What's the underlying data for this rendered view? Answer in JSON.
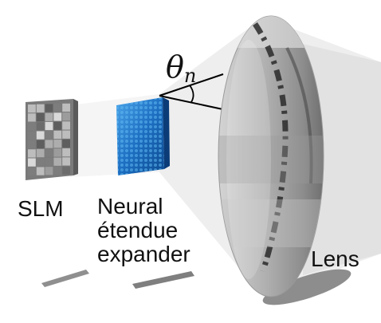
{
  "labels": {
    "slm": "SLM",
    "expander": [
      "Neural",
      "étendue",
      "expander"
    ],
    "lens": "Lens",
    "angle_symbol": "θ",
    "angle_subscript": "n"
  },
  "icons": [
    "slm-panel-icon",
    "expander-panel-icon",
    "lens-icon"
  ],
  "colors": {
    "slm": "#8a8a8a",
    "expander": "#1f6fc4",
    "lens": "#b8b8b8",
    "light_cone": "#e6e6e6"
  }
}
